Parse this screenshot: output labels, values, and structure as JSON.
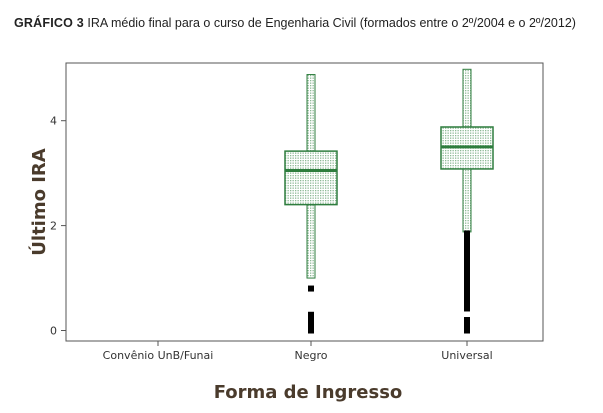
{
  "caption": {
    "label": "GRÁFICO 3",
    "text": "IRA médio final para o curso de Engenharia Civil (formados entre o 2º/2004 e o 2º/2012)"
  },
  "colors": {
    "box_stroke": "#2e7d3e",
    "box_fill": "#e6f2e6",
    "median": "#2e7d3e",
    "outlier": "#000000",
    "axis": "#555555",
    "axis_title": "#4a3b2c"
  },
  "chart_data": {
    "type": "boxplot",
    "xlabel": "Forma de Ingresso",
    "ylabel": "Último IRA",
    "categories": [
      "Convênio UnB/Funai",
      "Negro",
      "Universal"
    ],
    "ylim": [
      -0.2,
      5.1
    ],
    "yticks": [
      0,
      2,
      4
    ],
    "yticklabels": [
      "0",
      "2",
      "4"
    ],
    "grid": false,
    "boxes": [
      {
        "category": "Convênio UnB/Funai",
        "empty": true
      },
      {
        "category": "Negro",
        "whisker_low": 1.0,
        "q1": 2.4,
        "median": 3.05,
        "q3": 3.42,
        "whisker_high": 4.88,
        "outliers": [
          0.8,
          0.3,
          0.25,
          0.2,
          0.15,
          0.1,
          0.05,
          0.0
        ]
      },
      {
        "category": "Universal",
        "whisker_low": 1.88,
        "q1": 3.08,
        "median": 3.5,
        "q3": 3.88,
        "whisker_high": 4.98,
        "outliers": [
          1.85,
          1.78,
          1.7,
          1.62,
          1.55,
          1.5,
          1.45,
          1.38,
          1.3,
          1.25,
          1.2,
          1.12,
          1.05,
          0.98,
          0.9,
          0.85,
          0.8,
          0.75,
          0.7,
          0.62,
          0.55,
          0.5,
          0.45,
          0.42,
          0.2,
          0.15,
          0.1,
          0.05,
          0.0
        ]
      }
    ]
  }
}
